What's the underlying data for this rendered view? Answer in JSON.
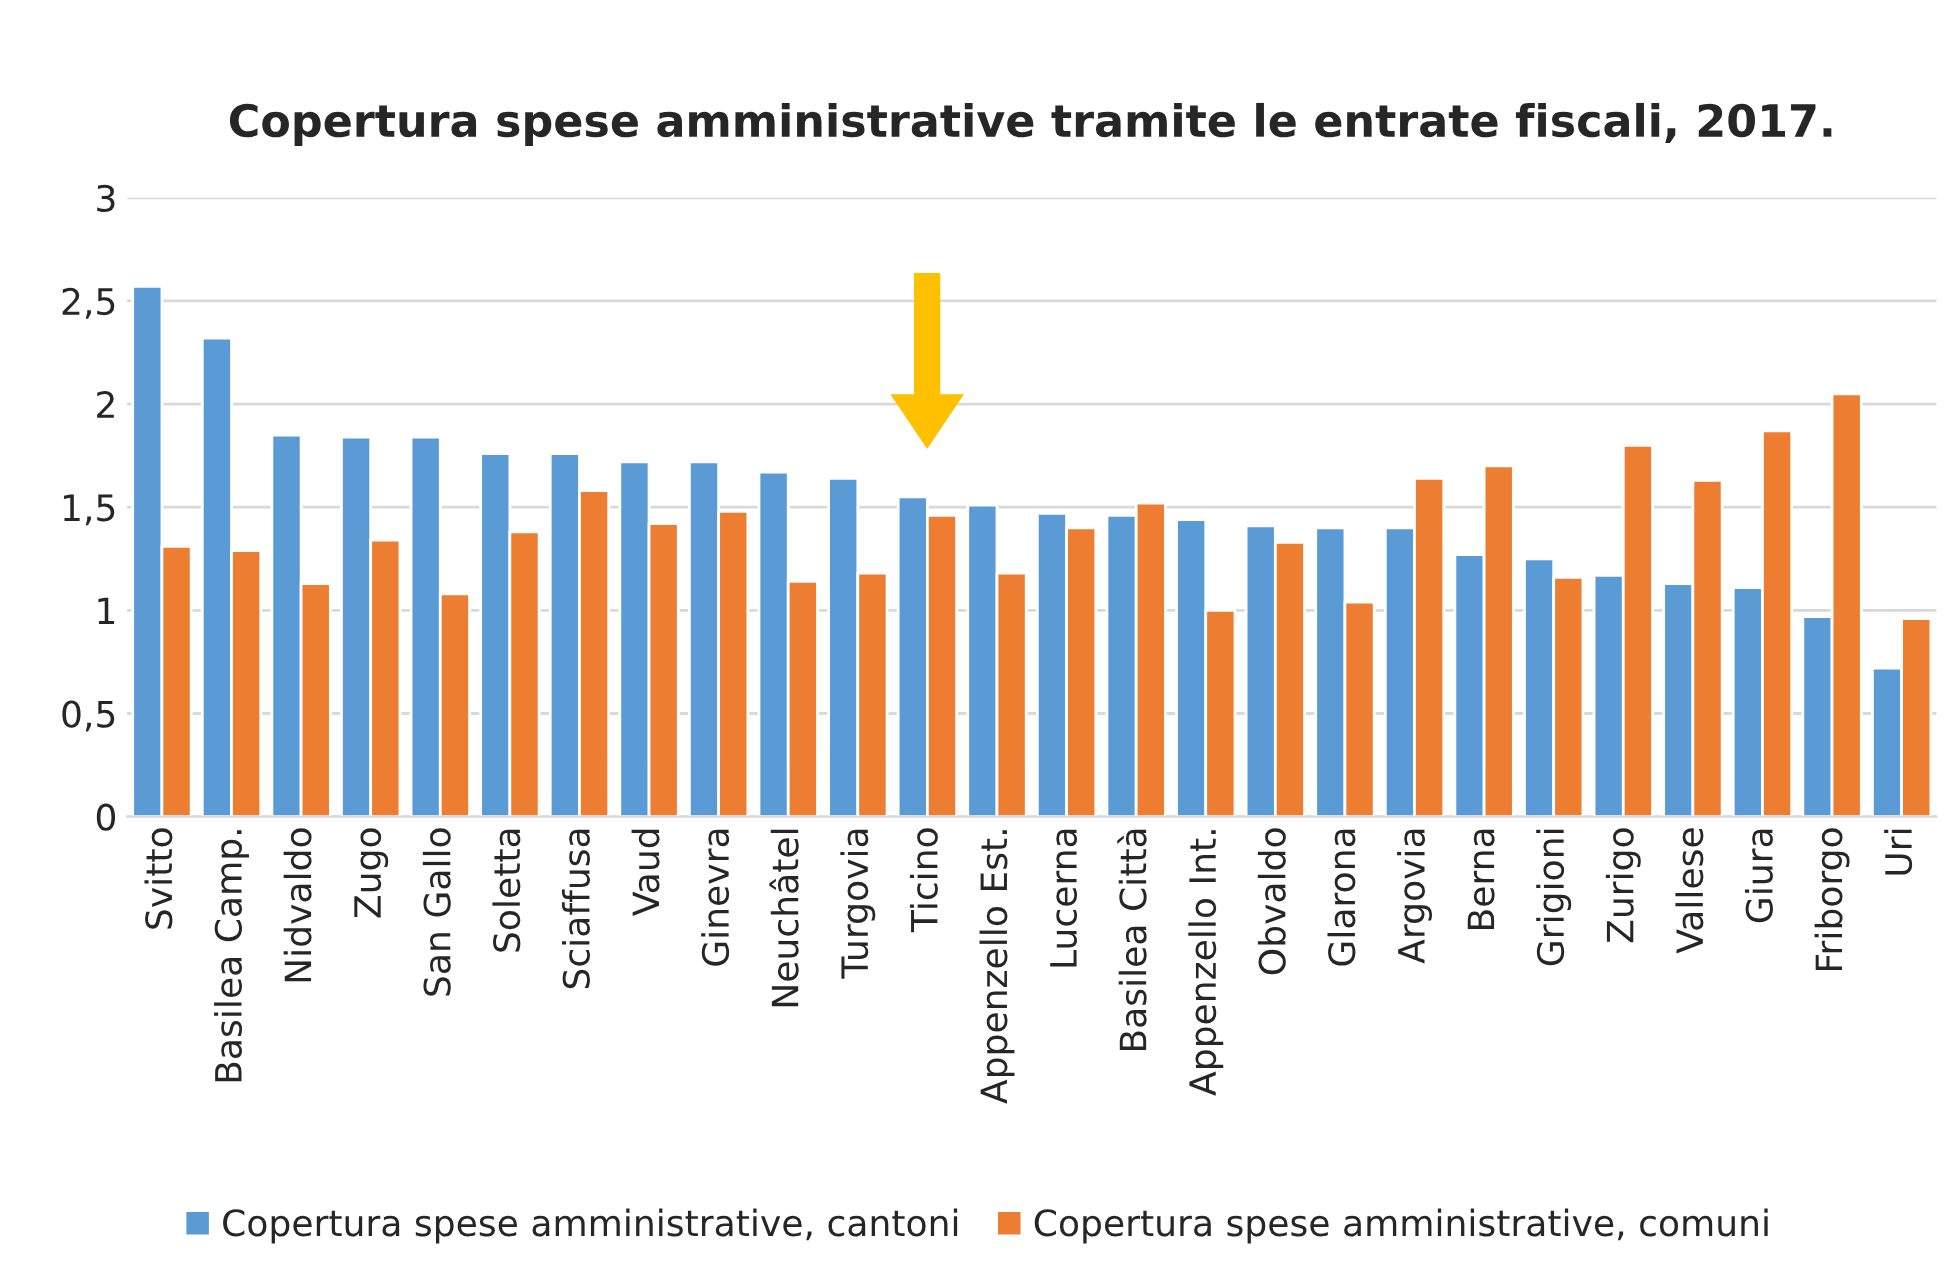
{
  "chart_data": {
    "type": "bar",
    "title": "Copertura spese amministrative tramite le entrate fiscali, 2017.",
    "categories": [
      "Svitto",
      "Basilea Camp.",
      "Nidvaldo",
      "Zugo",
      "San Gallo",
      "Soletta",
      "Sciaffusa",
      "Vaud",
      "Ginevra",
      "Neuchâtel",
      "Turgovia",
      "Ticino",
      "Appenzello Est.",
      "Lucerna",
      "Basilea Città",
      "Appenzello Int.",
      "Obvaldo",
      "Glarona",
      "Argovia",
      "Berna",
      "Grigioni",
      "Zurigo",
      "Vallese",
      "Giura",
      "Friborgo",
      "Uri"
    ],
    "series": [
      {
        "name": "Copertura spese amministrative, cantoni",
        "color": "#5b9bd5",
        "values": [
          2.57,
          2.32,
          1.85,
          1.84,
          1.84,
          1.76,
          1.76,
          1.72,
          1.72,
          1.67,
          1.64,
          1.55,
          1.51,
          1.47,
          1.46,
          1.44,
          1.41,
          1.4,
          1.4,
          1.27,
          1.25,
          1.17,
          1.13,
          1.11,
          0.97,
          0.72
        ]
      },
      {
        "name": "Copertura spese amministrative, comuni",
        "color": "#ed7d31",
        "values": [
          1.31,
          1.29,
          1.13,
          1.34,
          1.08,
          1.38,
          1.58,
          1.42,
          1.48,
          1.14,
          1.18,
          1.46,
          1.18,
          1.4,
          1.52,
          1.0,
          1.33,
          1.04,
          1.64,
          1.7,
          1.16,
          1.8,
          1.63,
          1.87,
          2.05,
          0.96
        ]
      }
    ],
    "ylim": [
      0,
      3
    ],
    "yticks": [
      0,
      {
        "value": 0.5,
        "label": "0,5"
      },
      1,
      {
        "value": 1.5,
        "label": "1,5"
      },
      2,
      {
        "value": 2.5,
        "label": "2,5"
      },
      3
    ],
    "grid": "y",
    "legend": "bottom"
  }
}
